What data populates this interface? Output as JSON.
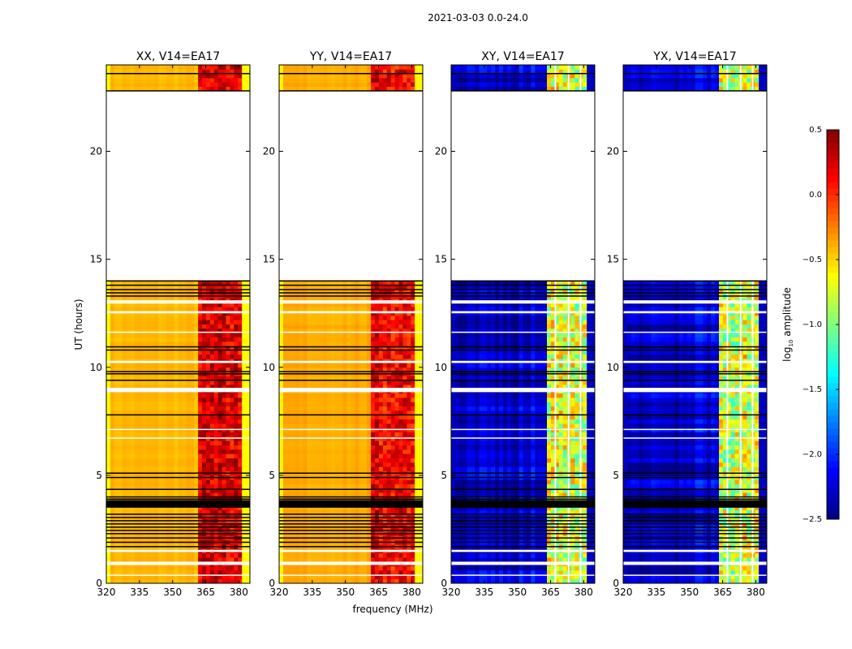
{
  "chart_data": {
    "type": "heatmap",
    "title": "2021-03-03 0.0-24.0",
    "xlabel": "frequency (MHz)",
    "ylabel": "UT (hours)",
    "xlim": [
      320,
      385
    ],
    "ylim": [
      0,
      24
    ],
    "xticks": [
      "320",
      "335",
      "350",
      "365",
      "380"
    ],
    "xtick_values": [
      320,
      335,
      350,
      365,
      380
    ],
    "yticks": [
      "0",
      "5",
      "10",
      "15",
      "20"
    ],
    "ytick_values": [
      0,
      5,
      10,
      15,
      20
    ],
    "colorbar": {
      "label": "log10 amplitude",
      "label_main": "log",
      "label_sub": "10",
      "label_rest": " amplitude",
      "range": [
        -2.5,
        0.5
      ],
      "ticks": [
        "0.5",
        "0.0",
        "−0.5",
        "−1.0",
        "−1.5",
        "−2.0",
        "−2.5"
      ],
      "tick_values": [
        0.5,
        0.0,
        -0.5,
        -1.0,
        -1.5,
        -2.0,
        -2.5
      ],
      "colormap": "jet"
    },
    "data_gaps_hours": [
      [
        14.0,
        22.8
      ],
      [
        12.95,
        13.1
      ],
      [
        12.5,
        12.6
      ],
      [
        11.6,
        11.65
      ],
      [
        10.2,
        10.3
      ],
      [
        8.85,
        9.05
      ],
      [
        0.85,
        1.0
      ],
      [
        1.45,
        1.55
      ],
      [
        7.1,
        7.15
      ],
      [
        6.7,
        6.75
      ],
      [
        0.35,
        0.4
      ]
    ],
    "flagged_rows_hours": [
      22.8,
      23.6,
      14.0,
      13.8,
      13.6,
      13.45,
      13.3,
      10.95,
      10.8,
      9.8,
      9.7,
      9.4,
      7.8,
      5.1,
      4.9,
      4.35,
      4.0,
      3.9,
      3.6,
      3.2,
      3.05,
      2.9,
      2.75,
      2.6,
      2.45,
      2.3,
      2.1,
      1.9,
      1.7
    ],
    "panels": [
      {
        "title": "XX, V14=EA17",
        "low_band_level": -0.42,
        "high_band_range_mhz": [
          362,
          381
        ],
        "high_band_level": 0.2,
        "edge_level": -0.62
      },
      {
        "title": "YY, V14=EA17",
        "low_band_level": -0.38,
        "high_band_range_mhz": [
          362,
          381
        ],
        "high_band_level": 0.15,
        "edge_level": -0.6
      },
      {
        "title": "XY, V14=EA17",
        "low_band_level": -2.25,
        "high_band_range_mhz": [
          363,
          381
        ],
        "high_band_level": -0.75,
        "edge_level": -2.3
      },
      {
        "title": "YX, V14=EA17",
        "low_band_level": -2.25,
        "high_band_range_mhz": [
          363,
          381
        ],
        "high_band_level": -0.75,
        "edge_level": -2.3
      }
    ]
  }
}
